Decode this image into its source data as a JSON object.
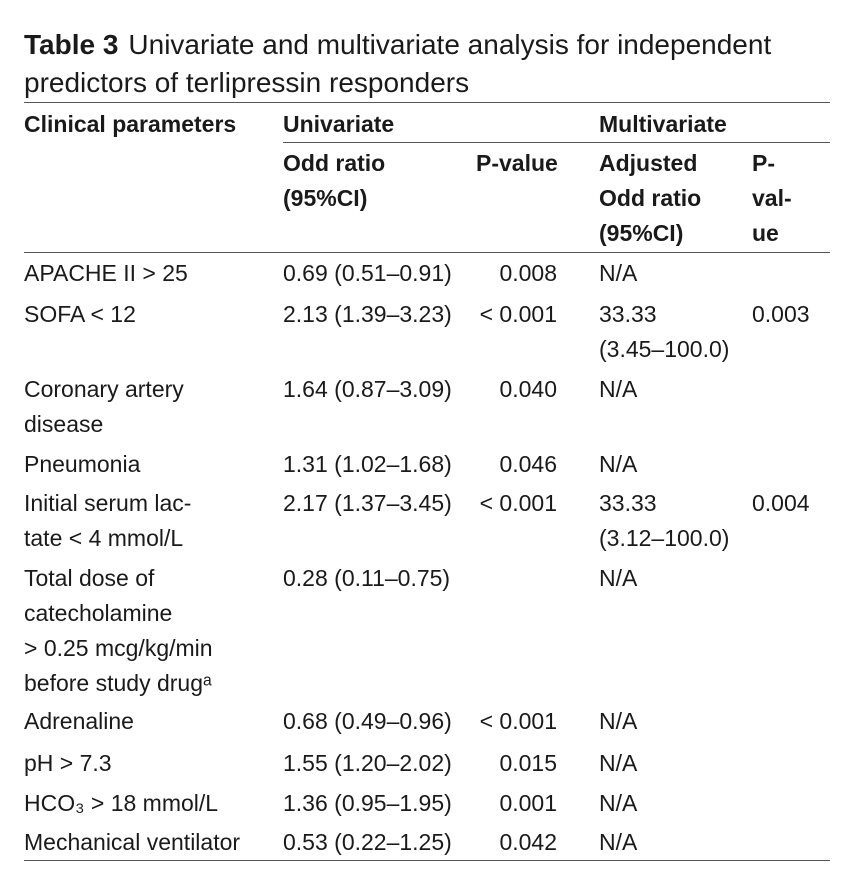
{
  "caption": {
    "label": "Table 3",
    "title": "Univariate and multivariate analysis for independent\npredictors of terlipressin responders"
  },
  "header": {
    "parameter": "Clinical parameters",
    "univariate": "Univariate",
    "multivariate": "Multivariate",
    "univariate_or": "Odd ratio\n(95%CI)",
    "univariate_p": "P-value",
    "multivariate_or": "Adjusted\nOdd ratio\n(95%CI)",
    "multivariate_p": "P-\nval-\nue"
  },
  "rows": [
    {
      "parameter": "APACHE II > 25",
      "univariate_or": "0.69 (0.51–0.91)",
      "univariate_p": "0.008",
      "multivariate_or": "N/A"
    },
    {
      "parameter": "SOFA < 12",
      "univariate_or": "2.13 (1.39–3.23)",
      "univariate_p": "< 0.001",
      "multivariate_or": "33.33\n(3.45–100.0)",
      "multivariate_p": "0.003"
    },
    {
      "parameter": "Coronary artery\ndisease",
      "univariate_or": "1.64 (0.87–3.09)",
      "univariate_p": "0.040",
      "multivariate_or": "N/A"
    },
    {
      "parameter": "Pneumonia",
      "univariate_or": "1.31 (1.02–1.68)",
      "univariate_p": "0.046",
      "multivariate_or": "N/A"
    },
    {
      "parameter": "Initial serum lac-\ntate < 4 mmol/L",
      "univariate_or": "2.17 (1.37–3.45)",
      "univariate_p": "< 0.001",
      "multivariate_or": "33.33\n(3.12–100.0)",
      "multivariate_p": "0.004"
    },
    {
      "parameter": "Total dose of\ncatecholamine\n> 0.25 mcg/kg/min\nbefore study drugᵃ",
      "univariate_or": "0.28 (0.11–0.75)",
      "multivariate_or": "N/A"
    },
    {
      "parameter": "Adrenaline",
      "univariate_or": "0.68 (0.49–0.96)",
      "univariate_p": "< 0.001",
      "multivariate_or": "N/A"
    },
    {
      "parameter": "pH > 7.3",
      "univariate_or": "1.55 (1.20–2.02)",
      "univariate_p": "0.015",
      "multivariate_or": "N/A"
    },
    {
      "parameter": "HCO₃ > 18 mmol/L",
      "univariate_or": "1.36 (0.95–1.95)",
      "univariate_p": "0.001",
      "multivariate_or": "N/A"
    },
    {
      "parameter": "Mechanical ventilator",
      "univariate_or": "0.53 (0.22–1.25)",
      "univariate_p": "0.042",
      "multivariate_or": "N/A"
    }
  ]
}
